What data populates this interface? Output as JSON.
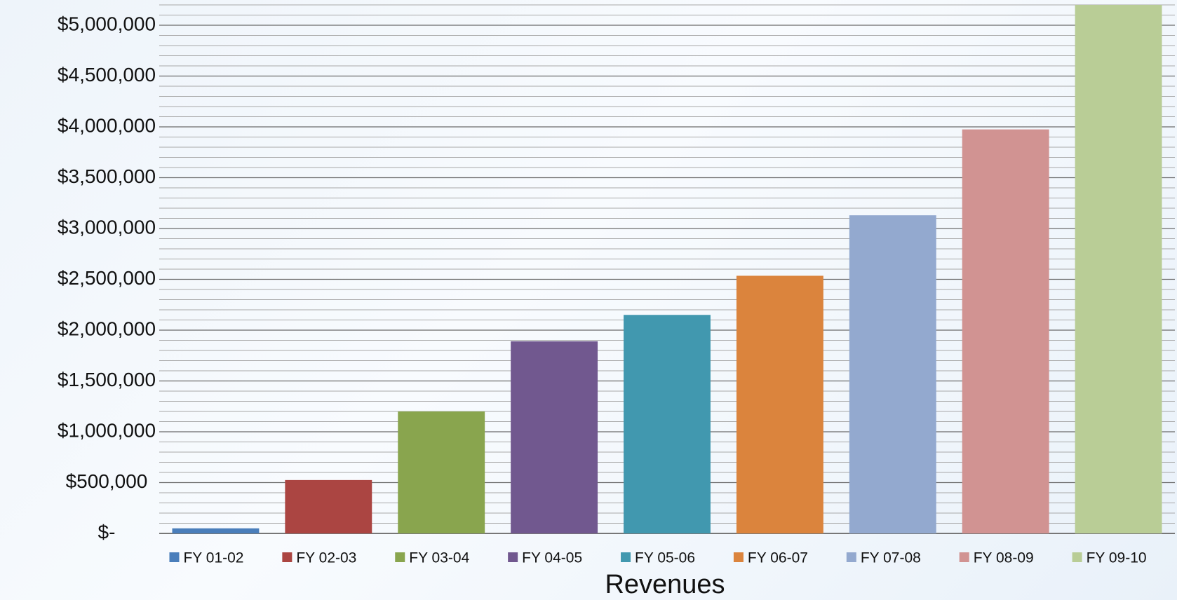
{
  "chart_data": {
    "type": "bar",
    "x_label": "Revenues",
    "categories": [
      "FY 01-02",
      "FY 02-03",
      "FY 03-04",
      "FY 04-05",
      "FY 05-06",
      "FY 06-07",
      "FY 07-08",
      "FY 08-09",
      "FY 09-10"
    ],
    "values": [
      50000,
      525000,
      1200000,
      1890000,
      2150000,
      2535000,
      3130000,
      3975000,
      5200000
    ],
    "colors": [
      "#4a7ebb",
      "#ab4542",
      "#89a54e",
      "#71588f",
      "#4198af",
      "#db843d",
      "#93a9cf",
      "#d19392",
      "#b9cd96"
    ],
    "ylim": [
      0,
      5200000
    ],
    "yticks": [
      {
        "value": 0,
        "label": "$-"
      },
      {
        "value": 500000,
        "label": "$500,000"
      },
      {
        "value": 1000000,
        "label": "$1,000,000"
      },
      {
        "value": 1500000,
        "label": "$1,500,000"
      },
      {
        "value": 2000000,
        "label": "$2,000,000"
      },
      {
        "value": 2500000,
        "label": "$2,500,000"
      },
      {
        "value": 3000000,
        "label": "$3,000,000"
      },
      {
        "value": 3500000,
        "label": "$3,500,000"
      },
      {
        "value": 4000000,
        "label": "$4,000,000"
      },
      {
        "value": 4500000,
        "label": "$4,500,000"
      },
      {
        "value": 5000000,
        "label": "$5,000,000"
      }
    ],
    "minor_tick_step": 100000,
    "grid": true,
    "legend": "bottom"
  }
}
